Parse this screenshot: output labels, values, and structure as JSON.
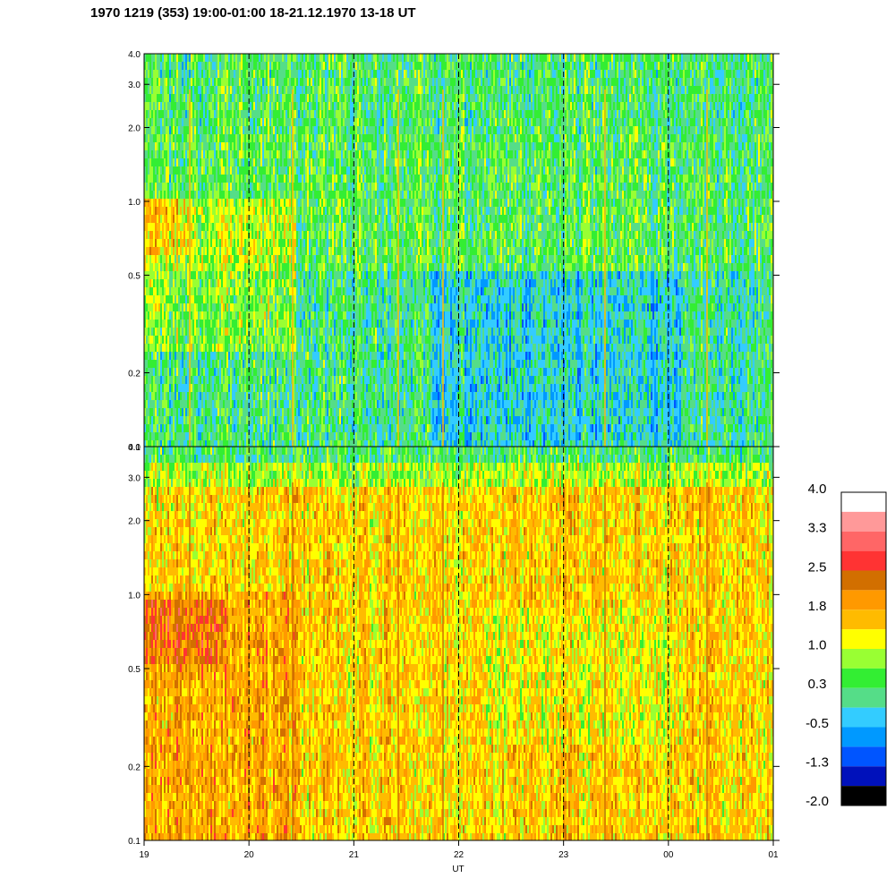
{
  "title": "1970 1219 (353) 19:00-01:00 18-21.12.1970  13-18 UT",
  "chart_data": {
    "type": "heatmap",
    "title": "1970 1219 (353) 19:00-01:00 18-21.12.1970  13-18 UT",
    "xlabel": "UT",
    "x_ticks": [
      "19",
      "20",
      "21",
      "22",
      "23",
      "00",
      "01"
    ],
    "xlim_hours": [
      19,
      25
    ],
    "dashed_vertical_lines_at_hours": [
      20,
      21,
      22,
      23,
      24
    ],
    "panels": [
      {
        "name": "upper",
        "y_scale": "log",
        "ylim": [
          0.1,
          4.0
        ],
        "y_ticks": [
          {
            "value": 0.1,
            "label": "0.1"
          },
          {
            "value": 0.2,
            "label": "0.2"
          },
          {
            "value": 0.5,
            "label": "0.5"
          },
          {
            "value": 1.0,
            "label": "1.0"
          },
          {
            "value": 2.0,
            "label": "2.0"
          },
          {
            "value": 3.0,
            "label": "3.0"
          },
          {
            "value": 4.0,
            "label": "4.0"
          }
        ],
        "dominant_level": 0.4
      },
      {
        "name": "lower",
        "y_scale": "log",
        "ylim": [
          0.1,
          4.0
        ],
        "y_ticks": [
          {
            "value": 0.1,
            "label": "0.1"
          },
          {
            "value": 0.2,
            "label": "0.2"
          },
          {
            "value": 0.5,
            "label": "0.5"
          },
          {
            "value": 1.0,
            "label": "1.0"
          },
          {
            "value": 2.0,
            "label": "2.0"
          },
          {
            "value": 3.0,
            "label": "3.0"
          },
          {
            "value": 4.0,
            "label": "4.0"
          }
        ],
        "dominant_level": 1.5
      }
    ],
    "colorbar": {
      "labels": [
        "4.0",
        "3.3",
        "2.5",
        "1.8",
        "1.0",
        "0.3",
        "-0.5",
        "-1.3",
        "-2.0"
      ],
      "colors_top_to_bottom": [
        "#ffffff",
        "#ff9999",
        "#ff6666",
        "#ff3333",
        "#d26f00",
        "#ff9900",
        "#ffbb00",
        "#ffff00",
        "#99ff33",
        "#33ee33",
        "#55dd88",
        "#33ccff",
        "#0099ff",
        "#0055ff",
        "#0011bb",
        "#000000"
      ]
    }
  }
}
